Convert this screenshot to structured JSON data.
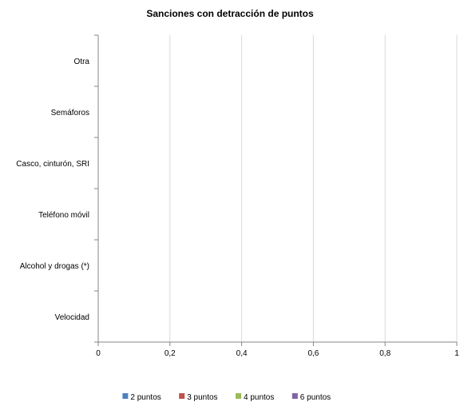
{
  "chart_data": {
    "type": "bar",
    "orientation": "horizontal",
    "stacked": true,
    "title": "Sanciones con detracción de puntos",
    "categories": [
      "Velocidad",
      "Alcohol y drogas (*)",
      "Teléfono móvil",
      "Casco, cinturón, SRI",
      "Semáforos",
      "Otra"
    ],
    "x_tick_labels": [
      "0",
      "0,2",
      "0,4",
      "0,6",
      "0,8",
      "1"
    ],
    "xlim": [
      0,
      1
    ],
    "grid": true,
    "legend_position": "bottom",
    "series": [
      {
        "name": "2 puntos",
        "color": "#4F81BD",
        "values": [
          0,
          0,
          0,
          0,
          0,
          0
        ]
      },
      {
        "name": "3 puntos",
        "color": "#C0504D",
        "values": [
          0,
          0,
          0,
          0,
          0,
          0
        ]
      },
      {
        "name": "4 puntos",
        "color": "#9BBB59",
        "values": [
          0,
          0,
          0,
          0,
          0,
          0
        ]
      },
      {
        "name": "6 puntos",
        "color": "#8064A2",
        "values": [
          0,
          0,
          0,
          0,
          0,
          0
        ]
      }
    ]
  }
}
